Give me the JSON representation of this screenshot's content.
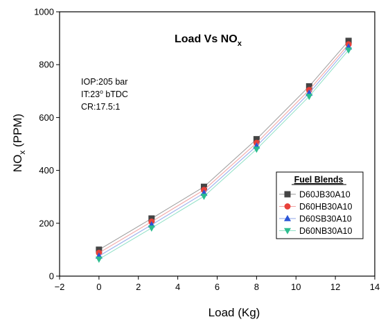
{
  "chart_data": {
    "type": "line",
    "title": "Load Vs NO",
    "title_sub": "x",
    "xlabel": "Load (Kg)",
    "ylabel_prefix": "NO",
    "ylabel_sub": "x",
    "ylabel_suffix": " (PPM)",
    "xlim": [
      -2,
      14
    ],
    "ylim": [
      0,
      1000
    ],
    "xticks": [
      -2,
      0,
      2,
      4,
      6,
      8,
      10,
      12,
      14
    ],
    "yticks": [
      0,
      200,
      400,
      600,
      800,
      1000
    ],
    "x": [
      0,
      2.67,
      5.33,
      8,
      10.67,
      12.67
    ],
    "annotations": [
      "IOP:205 bar",
      "IT:23",
      "o",
      " bTDC",
      "CR:17.5:1"
    ],
    "legend": {
      "title": "Fuel Blends",
      "position": "right"
    },
    "series": [
      {
        "name": "D60JB30A10",
        "marker": "square",
        "color": "#444444",
        "line_color": "#9a9a9a",
        "values": [
          100,
          218,
          338,
          518,
          718,
          890
        ]
      },
      {
        "name": "D60HB30A10",
        "marker": "circle",
        "color": "#e8413a",
        "line_color": "#f0a0a0",
        "values": [
          88,
          206,
          326,
          504,
          704,
          877
        ]
      },
      {
        "name": "D60SB30A10",
        "marker": "triangle-up",
        "color": "#2a55d6",
        "line_color": "#8fa6ea",
        "values": [
          76,
          194,
          314,
          492,
          692,
          867
        ]
      },
      {
        "name": "D60NB30A10",
        "marker": "triangle-down",
        "color": "#2dbd8f",
        "line_color": "#8fe0c6",
        "values": [
          64,
          182,
          302,
          480,
          680,
          855
        ]
      }
    ]
  }
}
